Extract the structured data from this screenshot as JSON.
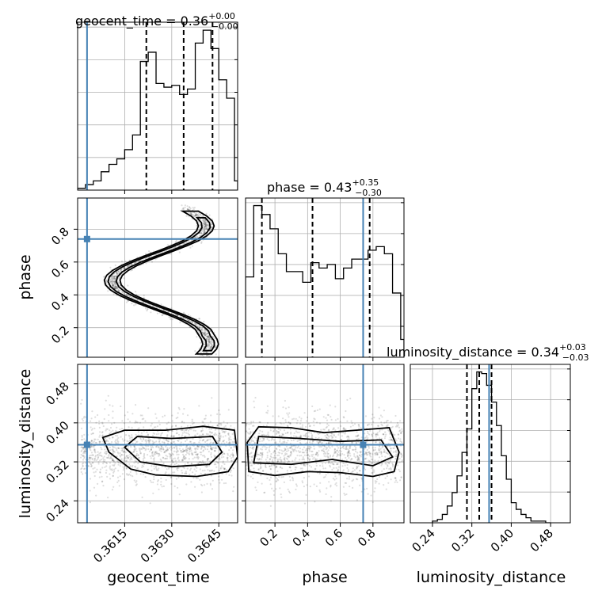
{
  "chart_data": {
    "type": "corner",
    "parameters": [
      "geocent_time",
      "phase",
      "luminosity_distance"
    ],
    "truths": {
      "geocent_time": 0.3603,
      "phase": 0.74,
      "luminosity_distance": 0.355
    },
    "titles": [
      {
        "text": "geocent_time = 0.36",
        "sup": "+0.00",
        "sub": "−0.00"
      },
      {
        "text": "phase = 0.43",
        "sup": "+0.35",
        "sub": "−0.30"
      },
      {
        "text": "luminosity_distance = 0.34",
        "sup": "+0.03",
        "sub": "−0.03"
      }
    ],
    "ranges": {
      "geocent_time": [
        0.36,
        0.3651
      ],
      "phase": [
        0.02,
        0.99
      ],
      "luminosity_distance": [
        0.195,
        0.52
      ]
    },
    "ticks": {
      "geocent_time": {
        "values": [
          0.3615,
          0.363,
          0.3645
        ],
        "labels": [
          "0.3615",
          "0.3630",
          "0.3645"
        ]
      },
      "phase": {
        "values": [
          0.2,
          0.4,
          0.6,
          0.8
        ],
        "labels": [
          "0.2",
          "0.4",
          "0.6",
          "0.8"
        ]
      },
      "luminosity_distance": {
        "values": [
          0.24,
          0.32,
          0.4,
          0.48
        ],
        "labels": [
          "0.24",
          "0.32",
          "0.40",
          "0.48"
        ]
      }
    },
    "axis_labels": {
      "geocent_time": "geocent_time",
      "phase": "phase",
      "luminosity_distance": "luminosity_distance"
    },
    "histograms": {
      "geocent_time": {
        "quantiles": [
          0.36219,
          0.36338,
          0.3643
        ],
        "edges": [
          0.36,
          0.36025,
          0.3605,
          0.36075,
          0.361,
          0.36125,
          0.3615,
          0.36175,
          0.362,
          0.36225,
          0.3625,
          0.36275,
          0.363,
          0.36325,
          0.3635,
          0.36375,
          0.364,
          0.36425,
          0.3645,
          0.36475,
          0.365,
          0.3651
        ],
        "counts": [
          1,
          3,
          5,
          10,
          14,
          17,
          22,
          30,
          70,
          75,
          58,
          56,
          57,
          52,
          55,
          80,
          87,
          77,
          60,
          50,
          5
        ]
      },
      "phase": {
        "quantiles": [
          0.12,
          0.43,
          0.78
        ],
        "edges": [
          0.02,
          0.07,
          0.12,
          0.17,
          0.22,
          0.27,
          0.32,
          0.37,
          0.42,
          0.47,
          0.52,
          0.57,
          0.62,
          0.67,
          0.72,
          0.77,
          0.82,
          0.87,
          0.92,
          0.97,
          0.99
        ],
        "counts": [
          45,
          85,
          80,
          72,
          58,
          48,
          48,
          42,
          53,
          50,
          52,
          44,
          50,
          55,
          55,
          60,
          62,
          58,
          36,
          10
        ]
      },
      "luminosity_distance": {
        "quantiles": [
          0.31,
          0.335,
          0.36
        ],
        "edges": [
          0.24,
          0.25,
          0.26,
          0.27,
          0.28,
          0.29,
          0.3,
          0.31,
          0.32,
          0.33,
          0.34,
          0.35,
          0.36,
          0.37,
          0.38,
          0.39,
          0.4,
          0.41,
          0.42,
          0.43,
          0.44,
          0.45,
          0.46,
          0.47,
          0.48
        ],
        "counts": [
          1,
          2,
          5,
          10,
          18,
          28,
          42,
          56,
          80,
          90,
          89,
          82,
          72,
          58,
          40,
          26,
          12,
          8,
          5,
          3,
          1,
          1,
          1,
          0
        ]
      }
    }
  }
}
